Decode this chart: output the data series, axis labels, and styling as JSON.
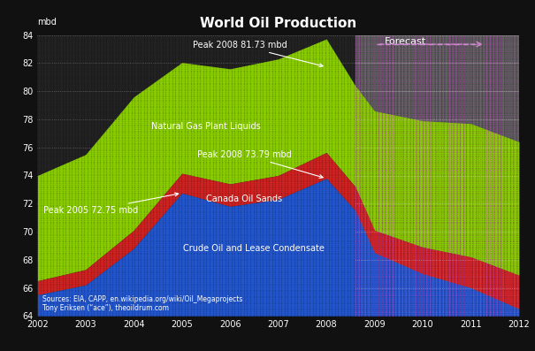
{
  "title": "World Oil Production",
  "ylabel": "mbd",
  "xlim": [
    2002,
    2012
  ],
  "ylim": [
    64,
    84
  ],
  "yticks": [
    64,
    66,
    68,
    70,
    72,
    74,
    76,
    78,
    80,
    82,
    84
  ],
  "xticks": [
    2002,
    2003,
    2004,
    2005,
    2006,
    2007,
    2008,
    2009,
    2010,
    2011,
    2012
  ],
  "background_color": "#111111",
  "plot_bg_color": "#222222",
  "forecast_bg_color": "#5a5a5a",
  "forecast_start": 2008.6,
  "years": [
    2002,
    2003,
    2004,
    2005,
    2006,
    2007,
    2008,
    2008.6,
    2009,
    2010,
    2011,
    2012
  ],
  "crude_oil": [
    65.5,
    66.2,
    68.8,
    72.75,
    71.8,
    72.3,
    73.79,
    71.5,
    68.5,
    67.0,
    66.0,
    64.5
  ],
  "canada_oil_sands": [
    1.0,
    1.1,
    1.3,
    1.4,
    1.6,
    1.7,
    1.85,
    1.7,
    1.6,
    1.9,
    2.2,
    2.4
  ],
  "natural_gas_plant_liquids": [
    7.5,
    8.2,
    9.5,
    7.9,
    8.2,
    8.3,
    8.09,
    7.2,
    8.5,
    9.0,
    9.5,
    9.5
  ],
  "crude_color": "#2255cc",
  "canada_color": "#cc2222",
  "ngpl_color": "#88cc00",
  "forecast_label": "Forecast",
  "sources_line1": "Sources: EIA, CAPP, en.wikipedia.org/wiki/Oil_Megaprojects",
  "sources_line2": "Tony Eriksen (“ace”), theoildrum.com",
  "peak_total_label": "Peak 2008 81.73 mbd",
  "peak_crude_label": "Peak 2008 73.79 mbd",
  "peak_crude2_label": "Peak 2005 72.75 mbd",
  "ngpl_label": "Natural Gas Plant Liquids",
  "canada_label": "Canada Oil Sands",
  "crude_label": "Crude Oil and Lease Condensate"
}
